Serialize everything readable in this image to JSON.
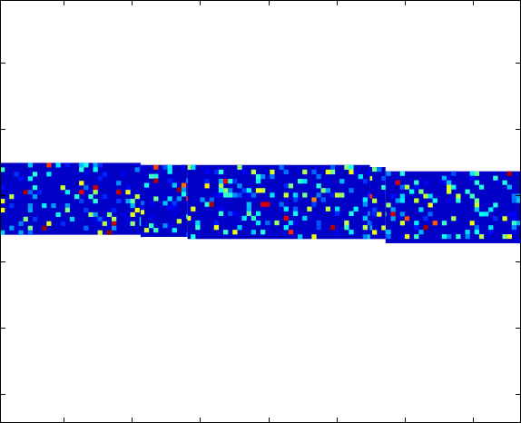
{
  "chart_data": {
    "type": "heatmap",
    "title": "",
    "xlabel": "",
    "ylabel": "",
    "tick_labels_visible": false,
    "grid": false,
    "legend": "none",
    "colormap": "jet",
    "colormap_stops": [
      "#00008f",
      "#0000ff",
      "#00ffff",
      "#ffff00",
      "#ff0000",
      "#800000"
    ],
    "background_color": "#ffffff",
    "axes_color": "#000000",
    "cell_columns": 112,
    "cell_rows": 16,
    "strips": [
      {
        "x_range": [
          0,
          0.27
        ],
        "y_range": [
          0.385,
          0.555
        ]
      },
      {
        "x_range": [
          0.27,
          0.36
        ],
        "y_range": [
          0.39,
          0.56
        ]
      },
      {
        "x_range": [
          0.36,
          0.71
        ],
        "y_range": [
          0.39,
          0.565
        ]
      },
      {
        "x_range": [
          0.71,
          0.74
        ],
        "y_range": [
          0.395,
          0.565
        ]
      },
      {
        "x_range": [
          0.74,
          1.0
        ],
        "y_range": [
          0.405,
          0.575
        ]
      }
    ],
    "value_distribution": {
      "background_level": 0.1,
      "common_level_range": [
        0.15,
        0.45
      ],
      "sparse_high_level_range": [
        0.55,
        1.0
      ]
    }
  }
}
